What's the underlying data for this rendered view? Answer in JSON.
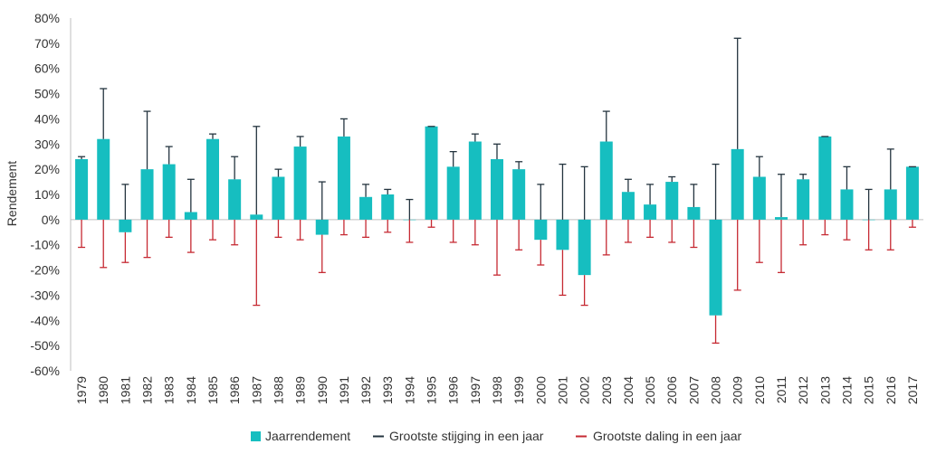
{
  "chart_data": {
    "type": "bar",
    "title": "",
    "xlabel": "",
    "ylabel": "Rendement",
    "ylim": [
      -60,
      80
    ],
    "ytick_step": 10,
    "ytick_labels": [
      "80%",
      "70%",
      "60%",
      "50%",
      "40%",
      "30%",
      "20%",
      "10%",
      "0%",
      "-10%",
      "-20%",
      "-30%",
      "-40%",
      "-50%",
      "-60%"
    ],
    "categories": [
      "1979",
      "1980",
      "1981",
      "1982",
      "1983",
      "1984",
      "1985",
      "1986",
      "1987",
      "1988",
      "1989",
      "1990",
      "1991",
      "1992",
      "1993",
      "1994",
      "1995",
      "1996",
      "1997",
      "1998",
      "1999",
      "2000",
      "2001",
      "2002",
      "2003",
      "2004",
      "2005",
      "2006",
      "2007",
      "2008",
      "2009",
      "2010",
      "2011",
      "2012",
      "2013",
      "2014",
      "2015",
      "2016",
      "2017"
    ],
    "series": [
      {
        "name": "Jaarrendement",
        "kind": "bar",
        "color": "#16BEC0",
        "values": [
          24,
          32,
          -5,
          20,
          22,
          3,
          32,
          16,
          2,
          17,
          29,
          -6,
          33,
          9,
          10,
          0,
          37,
          21,
          31,
          24,
          20,
          -8,
          -12,
          -22,
          31,
          11,
          6,
          15,
          5,
          -38,
          28,
          17,
          1,
          16,
          33,
          12,
          0,
          12,
          21
        ]
      },
      {
        "name": "Grootste stijging in een jaar",
        "kind": "errorbar-up",
        "color": "#24343F",
        "values": [
          25,
          52,
          14,
          43,
          29,
          16,
          34,
          25,
          37,
          20,
          33,
          15,
          40,
          14,
          12,
          8,
          37,
          27,
          34,
          30,
          23,
          14,
          22,
          21,
          43,
          16,
          14,
          17,
          14,
          22,
          72,
          25,
          18,
          18,
          33,
          21,
          12,
          28,
          21
        ]
      },
      {
        "name": "Grootste daling in een jaar",
        "kind": "errorbar-down",
        "color": "#C62A33",
        "values": [
          -11,
          -19,
          -17,
          -15,
          -7,
          -13,
          -8,
          -10,
          -34,
          -7,
          -8,
          -21,
          -6,
          -7,
          -5,
          -9,
          -3,
          -9,
          -10,
          -22,
          -12,
          -18,
          -30,
          -34,
          -14,
          -9,
          -7,
          -9,
          -11,
          -49,
          -28,
          -17,
          -21,
          -10,
          -6,
          -8,
          -12,
          -12,
          -3
        ]
      }
    ],
    "legend_position": "bottom",
    "grid": false
  }
}
